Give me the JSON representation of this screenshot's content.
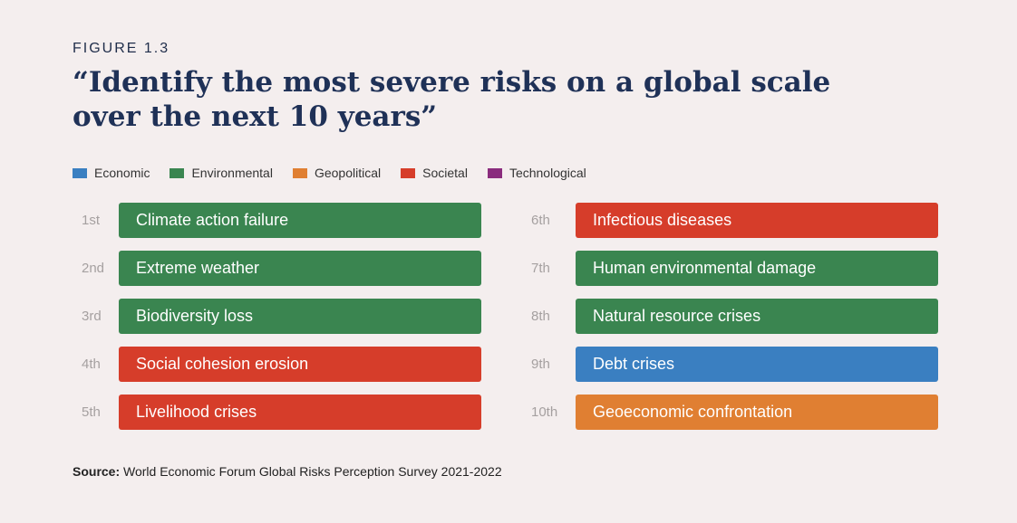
{
  "figure_label": "FIGURE 1.3",
  "title": "“Identify the most severe risks on a global scale over the next 10 years”",
  "legend": [
    {
      "label": "Economic",
      "color": "#3a7fc1"
    },
    {
      "label": "Environmental",
      "color": "#3a8550"
    },
    {
      "label": "Geopolitical",
      "color": "#e07f32"
    },
    {
      "label": "Societal",
      "color": "#d63d2a"
    },
    {
      "label": "Technological",
      "color": "#8a2c7d"
    }
  ],
  "risks": [
    {
      "rank": "1st",
      "label": "Climate action failure",
      "category": "Environmental"
    },
    {
      "rank": "2nd",
      "label": "Extreme weather",
      "category": "Environmental"
    },
    {
      "rank": "3rd",
      "label": "Biodiversity loss",
      "category": "Environmental"
    },
    {
      "rank": "4th",
      "label": "Social cohesion erosion",
      "category": "Societal"
    },
    {
      "rank": "5th",
      "label": "Livelihood crises",
      "category": "Societal"
    },
    {
      "rank": "6th",
      "label": "Infectious diseases",
      "category": "Societal"
    },
    {
      "rank": "7th",
      "label": "Human environmental damage",
      "category": "Environmental"
    },
    {
      "rank": "8th",
      "label": "Natural resource crises",
      "category": "Environmental"
    },
    {
      "rank": "9th",
      "label": "Debt crises",
      "category": "Economic"
    },
    {
      "rank": "10th",
      "label": "Geoeconomic confrontation",
      "category": "Geopolitical"
    }
  ],
  "source": {
    "label": "Source:",
    "text": "World Economic Forum Global Risks Perception Survey 2021-2022"
  }
}
